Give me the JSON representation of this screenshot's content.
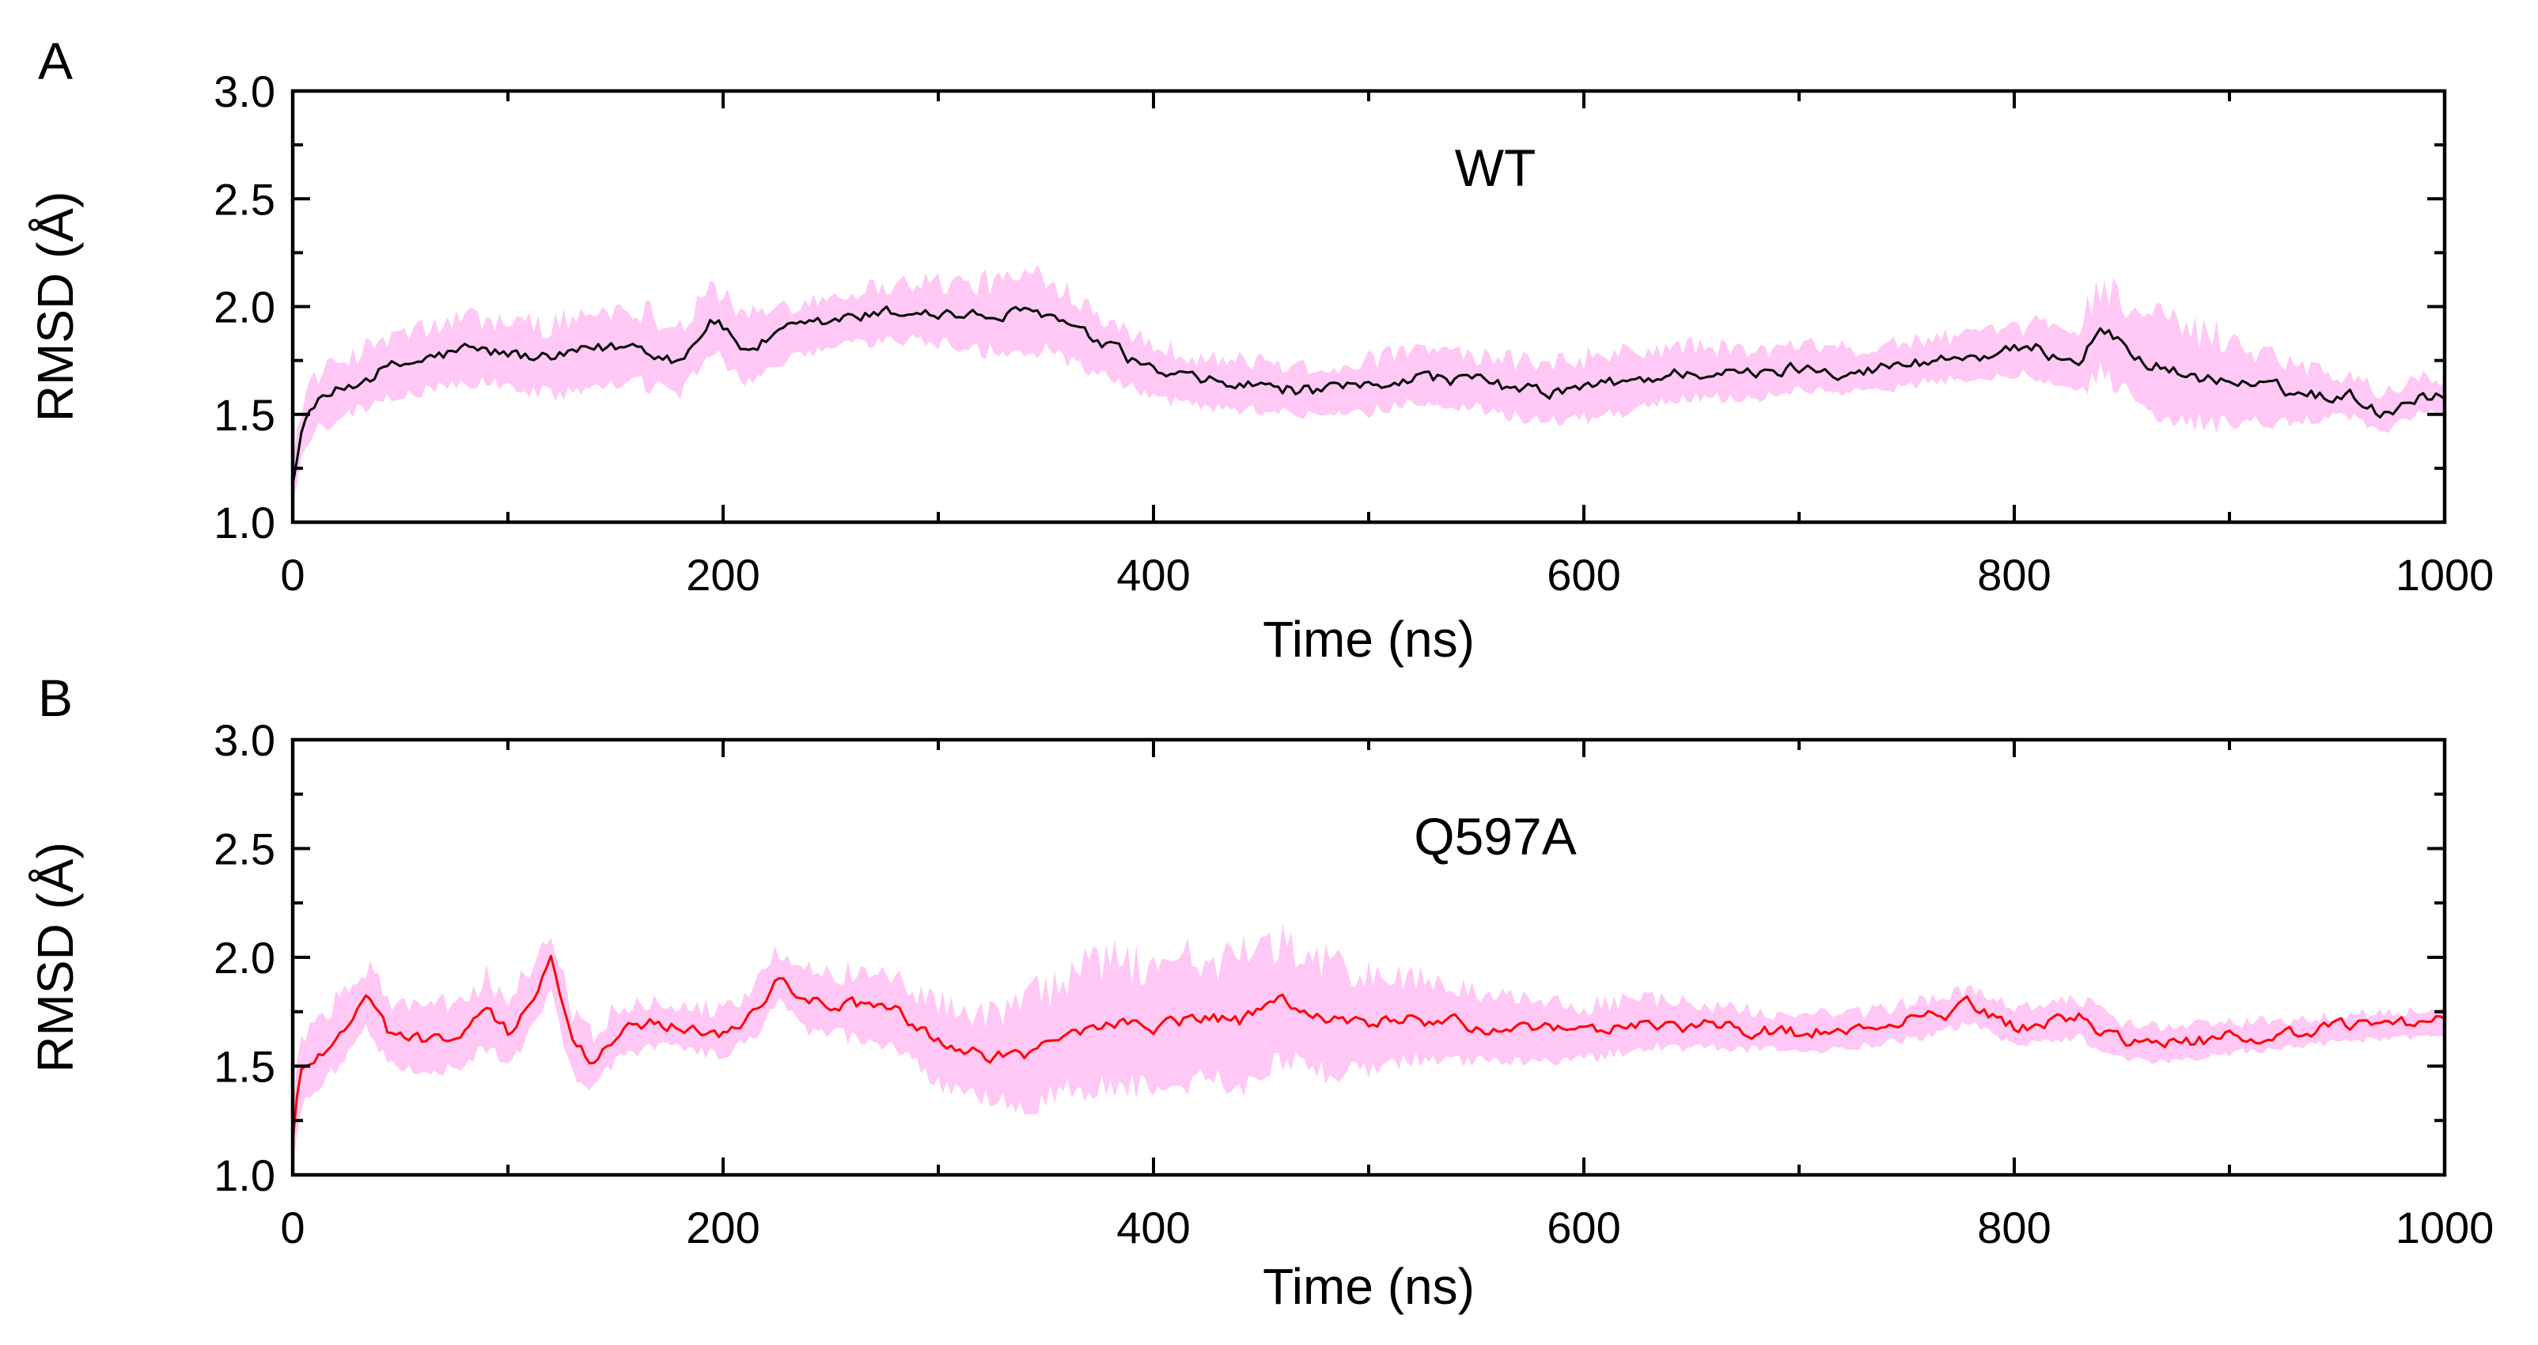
{
  "chart_data": [
    {
      "panel": "A",
      "type": "line",
      "annotation": "WT",
      "xlabel": "Time (ns)",
      "ylabel": "RMSD (Å)",
      "xlim": [
        0,
        1000
      ],
      "ylim": [
        1.0,
        3.0
      ],
      "x_ticks": [
        "0",
        "200",
        "400",
        "600",
        "800",
        "1000"
      ],
      "y_ticks": [
        "1.0",
        "1.5",
        "2.0",
        "2.5",
        "3.0"
      ],
      "line_color": "#000000",
      "band_color": "#ffc8f5",
      "series": [
        {
          "name": "mean",
          "x": [
            0,
            5,
            10,
            20,
            30,
            40,
            60,
            80,
            100,
            120,
            140,
            160,
            180,
            195,
            210,
            230,
            260,
            290,
            320,
            350,
            370,
            390,
            400,
            420,
            450,
            480,
            500,
            520,
            550,
            580,
            600,
            620,
            650,
            680,
            700,
            730,
            760,
            790,
            810,
            830,
            840,
            860,
            880,
            900,
            930,
            960,
            970,
            990,
            1000
          ],
          "y": [
            1.2,
            1.45,
            1.55,
            1.6,
            1.65,
            1.7,
            1.75,
            1.8,
            1.78,
            1.75,
            1.8,
            1.82,
            1.75,
            1.95,
            1.8,
            1.88,
            1.95,
            1.98,
            1.95,
            1.97,
            1.85,
            1.75,
            1.7,
            1.65,
            1.63,
            1.6,
            1.63,
            1.68,
            1.65,
            1.6,
            1.62,
            1.65,
            1.7,
            1.68,
            1.72,
            1.7,
            1.75,
            1.78,
            1.8,
            1.75,
            1.9,
            1.75,
            1.68,
            1.65,
            1.6,
            1.58,
            1.5,
            1.6,
            1.57
          ]
        },
        {
          "name": "spread",
          "x": [
            0,
            50,
            100,
            150,
            200,
            250,
            300,
            350,
            400,
            450,
            500,
            550,
            600,
            650,
            700,
            750,
            800,
            850,
            900,
            950,
            1000
          ],
          "y": [
            0.12,
            0.14,
            0.15,
            0.18,
            0.15,
            0.12,
            0.14,
            0.18,
            0.12,
            0.11,
            0.12,
            0.12,
            0.14,
            0.12,
            0.1,
            0.1,
            0.1,
            0.22,
            0.2,
            0.1,
            0.08
          ]
        }
      ]
    },
    {
      "panel": "B",
      "type": "line",
      "annotation": "Q597A",
      "xlabel": "Time (ns)",
      "ylabel": "RMSD (Å)",
      "xlim": [
        0,
        1000
      ],
      "ylim": [
        1.0,
        3.0
      ],
      "x_ticks": [
        "0",
        "200",
        "400",
        "600",
        "800",
        "1000"
      ],
      "y_ticks": [
        "1.0",
        "1.5",
        "2.0",
        "2.5",
        "3.0"
      ],
      "line_color": "#ff0000",
      "band_color": "#ffc8f5",
      "series": [
        {
          "name": "mean",
          "x": [
            0,
            3,
            8,
            15,
            25,
            35,
            45,
            60,
            80,
            90,
            100,
            110,
            120,
            130,
            140,
            150,
            170,
            200,
            215,
            225,
            240,
            260,
            280,
            300,
            320,
            340,
            360,
            380,
            400,
            420,
            440,
            460,
            480,
            500,
            520,
            550,
            580,
            600,
            630,
            660,
            700,
            730,
            760,
            780,
            800,
            830,
            850,
            870,
            900,
            930,
            960,
            1000
          ],
          "y": [
            1.15,
            1.45,
            1.52,
            1.58,
            1.7,
            1.82,
            1.65,
            1.62,
            1.65,
            1.75,
            1.65,
            1.8,
            1.98,
            1.6,
            1.52,
            1.65,
            1.7,
            1.65,
            1.75,
            1.92,
            1.8,
            1.78,
            1.75,
            1.6,
            1.55,
            1.55,
            1.65,
            1.7,
            1.68,
            1.72,
            1.7,
            1.8,
            1.72,
            1.7,
            1.72,
            1.68,
            1.66,
            1.65,
            1.7,
            1.68,
            1.65,
            1.67,
            1.72,
            1.78,
            1.68,
            1.72,
            1.62,
            1.6,
            1.63,
            1.65,
            1.68,
            1.7
          ]
        },
        {
          "name": "spread",
          "x": [
            0,
            50,
            100,
            150,
            200,
            250,
            300,
            350,
            400,
            450,
            500,
            550,
            600,
            650,
            700,
            750,
            800,
            850,
            900,
            950,
            1000
          ],
          "y": [
            0.15,
            0.14,
            0.16,
            0.12,
            0.1,
            0.14,
            0.18,
            0.25,
            0.3,
            0.28,
            0.22,
            0.15,
            0.12,
            0.1,
            0.08,
            0.08,
            0.08,
            0.09,
            0.07,
            0.06,
            0.06
          ]
        }
      ]
    }
  ]
}
